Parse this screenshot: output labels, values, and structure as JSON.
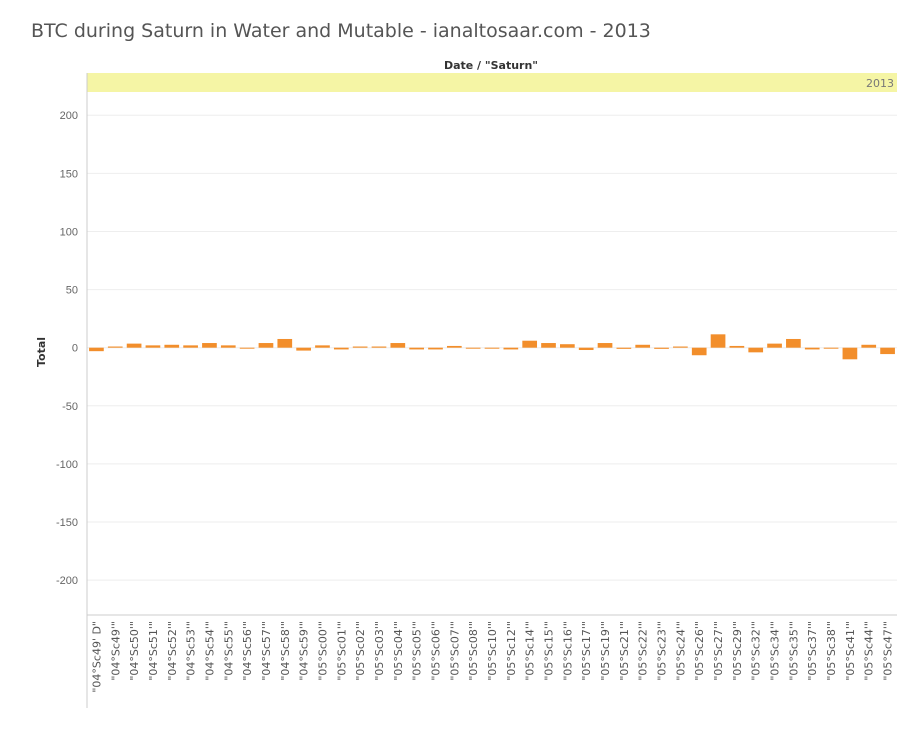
{
  "title": "BTC during Saturn in Water and Mutable - ianaltosaar.com - 2013",
  "colors": {
    "bar": "#F28E2B",
    "header_band": "#F5F5A5",
    "grid": "#EEEEEE",
    "axis": "#CCCCCC"
  },
  "chart_data": {
    "type": "bar",
    "title": "BTC during Saturn in Water and Mutable - ianaltosaar.com - 2013",
    "column_header": "Date / \"Saturn\"",
    "column_value": "2013",
    "ylabel": "Total",
    "xlabel": "",
    "ylim": [
      -230,
      220
    ],
    "yticks": [
      200,
      150,
      100,
      50,
      0,
      -50,
      -100,
      -150,
      -200
    ],
    "grid": true,
    "categories": [
      "\"04°Sc49' D\"",
      "\"04°Sc49'\"",
      "\"04°Sc50'\"",
      "\"04°Sc51'\"",
      "\"04°Sc52'\"",
      "\"04°Sc53'\"",
      "\"04°Sc54'\"",
      "\"04°Sc55'\"",
      "\"04°Sc56'\"",
      "\"04°Sc57'\"",
      "\"04°Sc58'\"",
      "\"04°Sc59'\"",
      "\"05°Sc00'\"",
      "\"05°Sc01'\"",
      "\"05°Sc02'\"",
      "\"05°Sc03'\"",
      "\"05°Sc04'\"",
      "\"05°Sc05'\"",
      "\"05°Sc06'\"",
      "\"05°Sc07'\"",
      "\"05°Sc08'\"",
      "\"05°Sc10'\"",
      "\"05°Sc12'\"",
      "\"05°Sc14'\"",
      "\"05°Sc15'\"",
      "\"05°Sc16'\"",
      "\"05°Sc17'\"",
      "\"05°Sc19'\"",
      "\"05°Sc21'\"",
      "\"05°Sc22'\"",
      "\"05°Sc23'\"",
      "\"05°Sc24'\"",
      "\"05°Sc26'\"",
      "\"05°Sc27'\"",
      "\"05°Sc29'\"",
      "\"05°Sc32'\"",
      "\"05°Sc34'\"",
      "\"05°Sc35'\"",
      "\"05°Sc37'\"",
      "\"05°Sc38'\"",
      "\"05°Sc41'\"",
      "\"05°Sc44'\"",
      "\"05°Sc47'\""
    ],
    "values": [
      -3,
      1,
      3.5,
      2,
      2.5,
      2,
      4,
      2,
      -0.5,
      4,
      7.5,
      -2.5,
      2,
      -1.5,
      1,
      1,
      4,
      -1.5,
      -1.5,
      1.5,
      -0.5,
      -0.5,
      -1.5,
      6,
      4,
      3,
      -2,
      4,
      -1,
      2.5,
      -1,
      1,
      -6.5,
      11.5,
      1.5,
      -4,
      3.5,
      7.5,
      -1.5,
      -0.5,
      -10,
      2.5,
      -5.5
    ]
  }
}
